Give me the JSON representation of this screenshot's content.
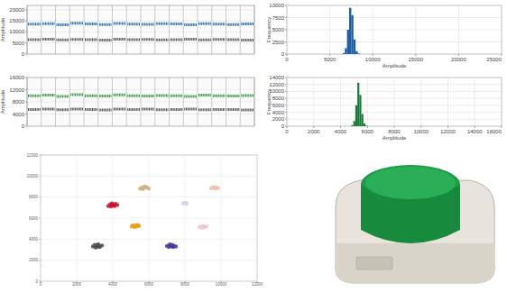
{
  "chart_data": [
    {
      "type": "strip",
      "y_label": "Amplitude",
      "categories": [
        null,
        null,
        null,
        null,
        null,
        null,
        null,
        null,
        null,
        null,
        null,
        null,
        null,
        null,
        null,
        null
      ],
      "ylim": [
        0,
        22000
      ],
      "yticks": [
        0,
        5000,
        10000,
        15000,
        20000
      ],
      "tick_labels": "y",
      "series": [
        {
          "color": "#1f6fb2",
          "values": [
            13500,
            13800,
            13200,
            14000,
            13600,
            13300,
            13900,
            13500,
            13400,
            13700,
            13600,
            13200,
            13800,
            13500,
            13300,
            13600
          ]
        },
        {
          "color": "#555555",
          "values": [
            6500,
            6700,
            6400,
            6600,
            6500,
            6300,
            6700,
            6500,
            6600,
            6400,
            6500,
            6700,
            6400,
            6600,
            6500,
            6300
          ]
        }
      ]
    },
    {
      "type": "histogram",
      "x_label": "Amplitude",
      "y_label": "Frequency",
      "bins": [
        6500,
        6750,
        7000,
        7250,
        7500,
        7750,
        8000,
        8250,
        8500
      ],
      "values": [
        200,
        1200,
        5000,
        9500,
        8000,
        3000,
        600,
        100
      ],
      "color": "#1f5fa0",
      "xlim": [
        0,
        25000
      ],
      "xticks": [
        0,
        5000,
        10000,
        15000,
        20000,
        25000
      ],
      "ylim": [
        0,
        10000
      ],
      "yticks": [
        0,
        2500,
        5000,
        7500,
        10000
      ]
    },
    {
      "type": "strip",
      "y_label": "Amplitude",
      "categories": [
        null,
        null,
        null,
        null,
        null,
        null,
        null,
        null,
        null,
        null,
        null,
        null,
        null,
        null,
        null,
        null
      ],
      "ylim": [
        0,
        16000
      ],
      "yticks": [
        0,
        4000,
        8000,
        12000,
        16000
      ],
      "tick_labels": "y",
      "series": [
        {
          "color": "#2e9a4a",
          "values": [
            10000,
            10200,
            9800,
            10400,
            10000,
            9900,
            10300,
            10000,
            9900,
            10100,
            10000,
            9800,
            10200,
            10000,
            9900,
            10100
          ]
        },
        {
          "color": "#555555",
          "values": [
            5500,
            5600,
            5400,
            5600,
            5500,
            5300,
            5600,
            5500,
            5600,
            5400,
            5500,
            5600,
            5400,
            5500,
            5500,
            5300
          ]
        }
      ]
    },
    {
      "type": "histogram",
      "x_label": "Amplitude",
      "y_label": "Frequency",
      "bins": [
        4800,
        4950,
        5100,
        5250,
        5400,
        5550,
        5700,
        5850,
        6000
      ],
      "values": [
        300,
        1500,
        6000,
        12500,
        9000,
        3500,
        800,
        150
      ],
      "color": "#1e7a3a",
      "xlim": [
        0,
        16000
      ],
      "xticks": [
        0,
        2000,
        4000,
        6000,
        8000,
        10000,
        12000,
        14000,
        16000
      ],
      "ylim": [
        0,
        14000
      ],
      "yticks": [
        0,
        2000,
        4000,
        6000,
        8000,
        10000,
        12000,
        14000
      ]
    },
    {
      "type": "scatter",
      "xlim": [
        0,
        12000
      ],
      "xticks": [
        0,
        2000,
        4000,
        6000,
        8000,
        10000,
        12000
      ],
      "ylim": [
        0,
        12000
      ],
      "yticks": [
        0,
        2000,
        4000,
        6000,
        8000,
        10000,
        12000
      ],
      "grid": true,
      "series": [
        {
          "color": "#4d4d4d",
          "x": [
            2900,
            3000,
            3100,
            3150,
            3200,
            3300,
            3400,
            3050,
            3250,
            3150
          ],
          "y": [
            3300,
            3450,
            3250,
            3370,
            3500,
            3300,
            3400,
            3200,
            3250,
            3450
          ]
        },
        {
          "color": "#4b3b9a",
          "x": [
            7000,
            7100,
            7200,
            7250,
            7300,
            7400,
            7500,
            7150,
            7350,
            7250
          ],
          "y": [
            3350,
            3250,
            3400,
            3300,
            3450,
            3350,
            3300,
            3500,
            3250,
            3400
          ]
        },
        {
          "color": "#e6a020",
          "x": [
            5050,
            5150,
            5250,
            5350,
            5450,
            5200,
            5300,
            5100,
            5400
          ],
          "y": [
            5200,
            5300,
            5250,
            5350,
            5250,
            5150,
            5200,
            5300,
            5300
          ]
        },
        {
          "color": "#c8102e",
          "x": [
            3750,
            3850,
            3950,
            4050,
            4150,
            4250,
            3900,
            4100,
            4000,
            3950
          ],
          "y": [
            7150,
            7300,
            7250,
            7200,
            7350,
            7250,
            7100,
            7150,
            7300,
            7400
          ]
        },
        {
          "color": "#c9b48a",
          "x": [
            5500,
            5600,
            5700,
            5800,
            5900,
            6000,
            5650,
            5850,
            5750
          ],
          "y": [
            8800,
            8900,
            8850,
            8950,
            8900,
            8800,
            8750,
            8950,
            9000
          ]
        },
        {
          "color": "#f2c0b0",
          "x": [
            9450,
            9550,
            9650,
            9750,
            9850,
            9600,
            9700
          ],
          "y": [
            8850,
            8900,
            8800,
            8900,
            8850,
            8950,
            8850
          ]
        },
        {
          "color": "#ddd0e4",
          "x": [
            7900,
            8000,
            8100,
            7950,
            8050
          ],
          "y": [
            7400,
            7450,
            7350,
            7350,
            7450
          ]
        },
        {
          "color": "#f0c8c8",
          "x": [
            8800,
            8900,
            9000,
            9100,
            9200,
            8950,
            9050
          ],
          "y": [
            5150,
            5200,
            5250,
            5150,
            5200,
            5100,
            5200
          ]
        }
      ]
    }
  ]
}
